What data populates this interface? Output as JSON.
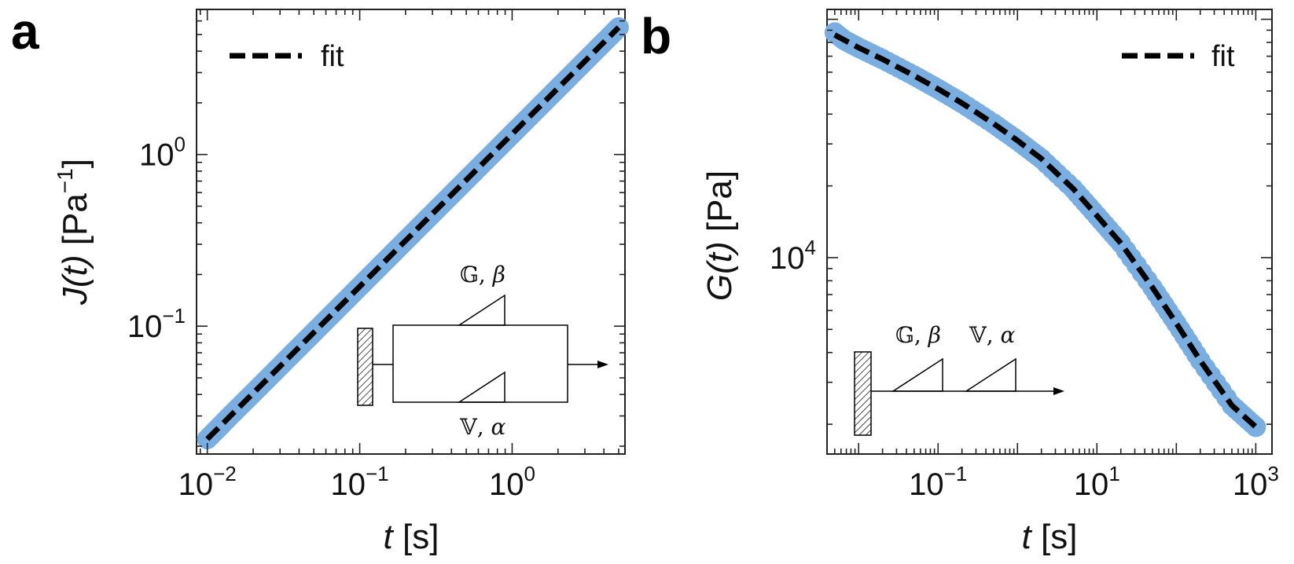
{
  "chart_data": [
    {
      "panel": "a",
      "type": "line",
      "xscale": "log",
      "yscale": "log",
      "xlim": [
        0.0085,
        5.5
      ],
      "ylim": [
        0.018,
        7.0
      ],
      "xticks": [
        {
          "value": 0.01,
          "label": "10",
          "exp": "−2"
        },
        {
          "value": 0.1,
          "label": "10",
          "exp": "−1"
        },
        {
          "value": 1,
          "label": "10",
          "exp": "0"
        }
      ],
      "yticks": [
        {
          "value": 0.1,
          "label": "10",
          "exp": "−1"
        },
        {
          "value": 1,
          "label": "10",
          "exp": "0"
        }
      ],
      "xlabel": {
        "var": "t",
        "unit": " [s]"
      },
      "ylabel": {
        "var": "J(t)",
        "unit": " [Pa",
        "exp": "−1",
        "close": "]"
      },
      "legend": {
        "label": "fit",
        "position": "top-left"
      },
      "series": [
        {
          "name": "data",
          "style": "markers",
          "color": "#7aaee0",
          "x": [
            0.01,
            0.0119,
            0.0141,
            0.0168,
            0.02,
            0.0238,
            0.0283,
            0.0336,
            0.04,
            0.0476,
            0.0566,
            0.0673,
            0.08,
            0.0951,
            0.1131,
            0.1345,
            0.16,
            0.1902,
            0.2262,
            0.269,
            0.32,
            0.3805,
            0.4525,
            0.5381,
            0.64,
            0.7611,
            0.9051,
            1.0763,
            1.28,
            1.5221,
            1.8101,
            2.1526,
            2.56,
            3.0443,
            3.6203,
            4.3053,
            5.0
          ],
          "y": [
            0.022,
            0.0257,
            0.03,
            0.035,
            0.0408,
            0.0476,
            0.0555,
            0.0647,
            0.0755,
            0.0881,
            0.1027,
            0.1198,
            0.1397,
            0.1629,
            0.1901,
            0.2217,
            0.2586,
            0.3016,
            0.3518,
            0.4103,
            0.4786,
            0.5582,
            0.6511,
            0.7595,
            0.8858,
            1.0332,
            1.2051,
            1.4056,
            1.6395,
            1.9123,
            2.2305,
            2.6016,
            3.0345,
            3.5394,
            4.1284,
            4.8153,
            5.5
          ]
        },
        {
          "name": "fit",
          "style": "dashed",
          "color": "#000000",
          "x": [
            0.01,
            5.0
          ],
          "y": [
            0.022,
            5.5
          ]
        }
      ],
      "inset": {
        "type": "fractional Kelvin–Voigt (parallel)",
        "top_label": {
          "sym": "𝔾",
          "greek": "β"
        },
        "bottom_label": {
          "sym": "𝕍",
          "greek": "α"
        }
      }
    },
    {
      "panel": "b",
      "type": "line",
      "xscale": "log",
      "yscale": "log",
      "xlim": [
        0.004,
        1600
      ],
      "ylim": [
        1500,
        110000
      ],
      "xticks": [
        {
          "value": 0.1,
          "label": "10",
          "exp": "−1"
        },
        {
          "value": 10,
          "label": "10",
          "exp": "1"
        },
        {
          "value": 1000,
          "label": "10",
          "exp": "3"
        }
      ],
      "yticks": [
        {
          "value": 10000,
          "label": "10",
          "exp": "4"
        }
      ],
      "xlabel": {
        "var": "t",
        "unit": " [s]"
      },
      "ylabel": {
        "var": "G(t)",
        "unit": " [Pa]"
      },
      "legend": {
        "label": "fit",
        "position": "top-right"
      },
      "series": [
        {
          "name": "data",
          "style": "markers",
          "color": "#7aaee0",
          "x": [
            0.005,
            0.0065,
            0.01,
            0.02,
            0.05,
            0.1,
            0.2,
            0.5,
            1,
            2,
            5,
            10,
            20,
            50,
            100,
            200,
            500,
            1000
          ],
          "y": [
            88000,
            82000,
            76000,
            68000,
            58000,
            51000,
            44500,
            36500,
            31000,
            26000,
            19500,
            15000,
            11500,
            7500,
            5300,
            3700,
            2400,
            1950
          ]
        },
        {
          "name": "fit",
          "style": "dashed",
          "color": "#000000",
          "x": [
            0.005,
            0.01,
            0.02,
            0.05,
            0.1,
            0.2,
            0.5,
            1,
            2,
            5,
            10,
            20,
            50,
            100,
            200,
            500,
            1000
          ],
          "y": [
            86000,
            76000,
            68000,
            58000,
            51000,
            44500,
            36500,
            31000,
            26000,
            19500,
            15000,
            11500,
            7500,
            5300,
            3700,
            2400,
            1950
          ]
        }
      ],
      "inset": {
        "type": "fractional Maxwell (series)",
        "left_label": {
          "sym": "𝔾",
          "greek": "β"
        },
        "right_label": {
          "sym": "𝕍",
          "greek": "α"
        }
      }
    }
  ]
}
